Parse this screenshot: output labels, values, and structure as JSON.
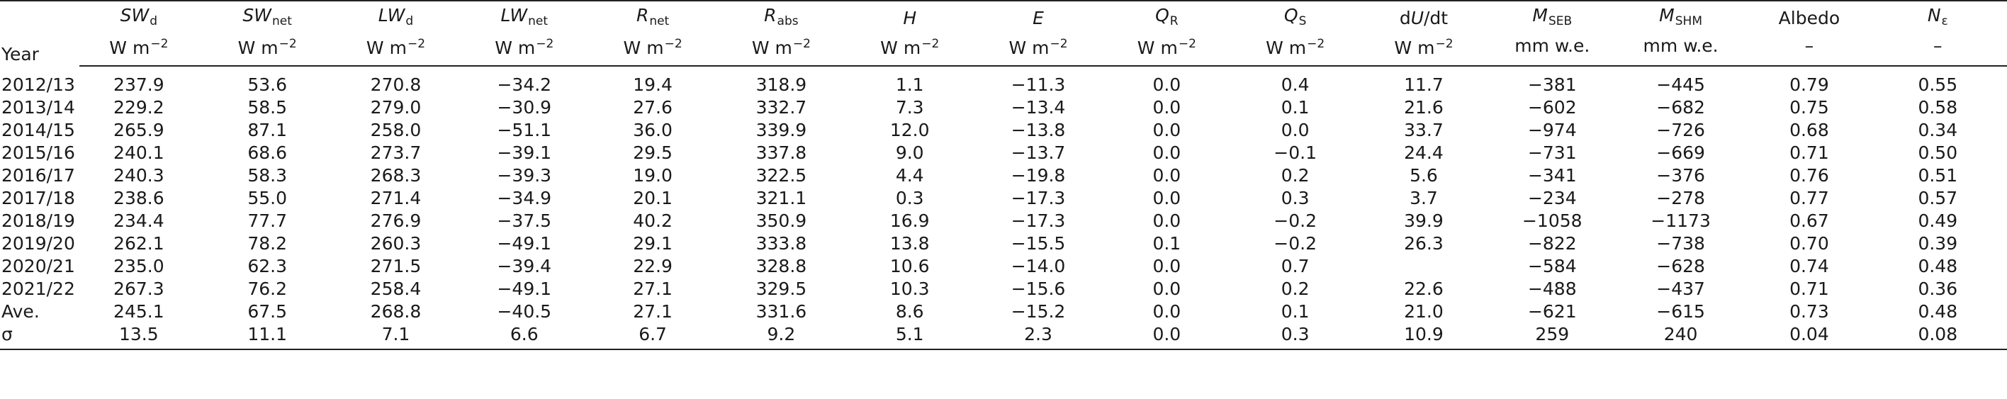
{
  "columns": [
    {
      "sym": "SW",
      "sub": "d",
      "unit": "W m",
      "exp": "−2"
    },
    {
      "sym": "SW",
      "sub": "net",
      "unit": "W m",
      "exp": "−2"
    },
    {
      "sym": "LW",
      "sub": "d",
      "unit": "W m",
      "exp": "−2"
    },
    {
      "sym": "LW",
      "sub": "net",
      "unit": "W m",
      "exp": "−2"
    },
    {
      "sym": "R",
      "sub": "net",
      "unit": "W m",
      "exp": "−2"
    },
    {
      "sym": "R",
      "sub": "abs",
      "unit": "W m",
      "exp": "−2"
    },
    {
      "sym": "H",
      "sub": "",
      "unit": "W m",
      "exp": "−2"
    },
    {
      "sym": "E",
      "sub": "",
      "unit": "W m",
      "exp": "−2"
    },
    {
      "sym": "Q",
      "sub": "R",
      "unit": "W m",
      "exp": "−2"
    },
    {
      "sym": "Q",
      "sub": "S",
      "unit": "W m",
      "exp": "−2"
    },
    {
      "sym": "dU/dt",
      "sub": "",
      "unit": "W m",
      "exp": "−2"
    },
    {
      "sym": "M",
      "sub": "SEB",
      "unit": "mm w.e.",
      "exp": ""
    },
    {
      "sym": "M",
      "sub": "SHM",
      "unit": "mm w.e.",
      "exp": ""
    },
    {
      "sym": "Albedo",
      "sub": "",
      "unit": "–",
      "exp": ""
    },
    {
      "sym": "N",
      "sub": "ε",
      "unit": "–",
      "exp": ""
    }
  ],
  "header": {
    "year": "Year"
  },
  "rows": [
    {
      "label": "2012/13",
      "values": [
        "237.9",
        "53.6",
        "270.8",
        "−34.2",
        "19.4",
        "318.9",
        "1.1",
        "−11.3",
        "0.0",
        "0.4",
        "11.7",
        "−381",
        "−445",
        "0.79",
        "0.55"
      ]
    },
    {
      "label": "2013/14",
      "values": [
        "229.2",
        "58.5",
        "279.0",
        "−30.9",
        "27.6",
        "332.7",
        "7.3",
        "−13.4",
        "0.0",
        "0.1",
        "21.6",
        "−602",
        "−682",
        "0.75",
        "0.58"
      ]
    },
    {
      "label": "2014/15",
      "values": [
        "265.9",
        "87.1",
        "258.0",
        "−51.1",
        "36.0",
        "339.9",
        "12.0",
        "−13.8",
        "0.0",
        "0.0",
        "33.7",
        "−974",
        "−726",
        "0.68",
        "0.34"
      ]
    },
    {
      "label": "2015/16",
      "values": [
        "240.1",
        "68.6",
        "273.7",
        "−39.1",
        "29.5",
        "337.8",
        "9.0",
        "−13.7",
        "0.0",
        "−0.1",
        "24.4",
        "−731",
        "−669",
        "0.71",
        "0.50"
      ]
    },
    {
      "label": "2016/17",
      "values": [
        "240.3",
        "58.3",
        "268.3",
        "−39.3",
        "19.0",
        "322.5",
        "4.4",
        "−19.8",
        "0.0",
        "0.2",
        "5.6",
        "−341",
        "−376",
        "0.76",
        "0.51"
      ]
    },
    {
      "label": "2017/18",
      "values": [
        "238.6",
        "55.0",
        "271.4",
        "−34.9",
        "20.1",
        "321.1",
        "0.3",
        "−17.3",
        "0.0",
        "0.3",
        "3.7",
        "−234",
        "−278",
        "0.77",
        "0.57"
      ]
    },
    {
      "label": "2018/19",
      "values": [
        "234.4",
        "77.7",
        "276.9",
        "−37.5",
        "40.2",
        "350.9",
        "16.9",
        "−17.3",
        "0.0",
        "−0.2",
        "39.9",
        "−1058",
        "−1173",
        "0.67",
        "0.49"
      ]
    },
    {
      "label": "2019/20",
      "values": [
        "262.1",
        "78.2",
        "260.3",
        "−49.1",
        "29.1",
        "333.8",
        "13.8",
        "−15.5",
        "0.1",
        "−0.2",
        "26.3",
        "−822",
        "−738",
        "0.70",
        "0.39"
      ]
    },
    {
      "label": "2020/21",
      "values": [
        "235.0",
        "62.3",
        "271.5",
        "−39.4",
        "22.9",
        "328.8",
        "10.6",
        "−14.0",
        "0.0",
        "0.7",
        "",
        "−584",
        "−628",
        "0.74",
        "0.48"
      ]
    },
    {
      "label": "2021/22",
      "values": [
        "267.3",
        "76.2",
        "258.4",
        "−49.1",
        "27.1",
        "329.5",
        "10.3",
        "−15.6",
        "0.0",
        "0.2",
        "22.6",
        "−488",
        "−437",
        "0.71",
        "0.36"
      ]
    },
    {
      "label": "Ave.",
      "values": [
        "245.1",
        "67.5",
        "268.8",
        "−40.5",
        "27.1",
        "331.6",
        "8.6",
        "−15.2",
        "0.0",
        "0.1",
        "21.0",
        "−621",
        "−615",
        "0.73",
        "0.48"
      ]
    },
    {
      "label": "σ",
      "values": [
        "13.5",
        "11.1",
        "7.1",
        "6.6",
        "6.7",
        "9.2",
        "5.1",
        "2.3",
        "0.0",
        "0.3",
        "10.9",
        "259",
        "240",
        "0.04",
        "0.08"
      ]
    }
  ]
}
